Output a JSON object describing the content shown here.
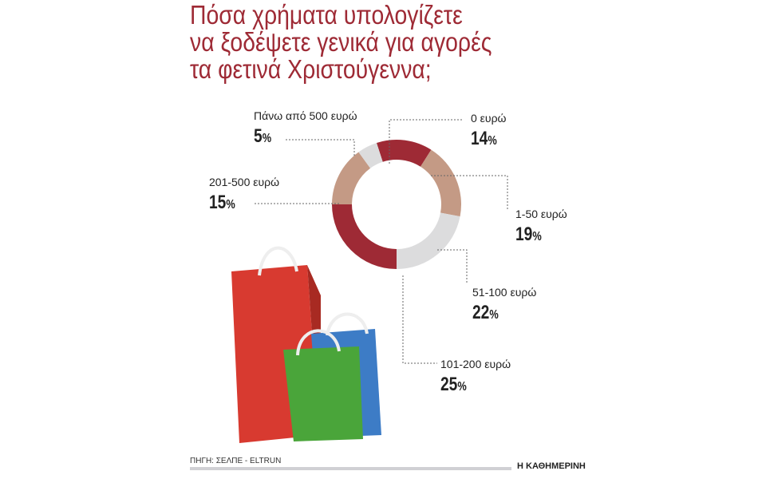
{
  "title": [
    "Πόσα χρήματα υπολογίζετε",
    "να ξοδέψετε γενικά για αγορές",
    "τα φετινά Χριστούγεννα;"
  ],
  "chart_data": {
    "type": "pie",
    "donut": true,
    "categories": [
      "0 ευρώ",
      "1-50 ευρώ",
      "51-100 ευρώ",
      "101-200 ευρώ",
      "201-500 ευρώ",
      "Πάνω από 500 ευρώ"
    ],
    "values": [
      14,
      19,
      22,
      25,
      15,
      5
    ],
    "labels": [
      "14%",
      "19%",
      "22%",
      "25%",
      "15%",
      "5%"
    ],
    "colors": [
      "#9e2a35",
      "#c49a85",
      "#dcdcdd",
      "#9e2a35",
      "#c49a85",
      "#dcdcdd"
    ]
  },
  "footer": {
    "source": "ΠΗΓΗ: ΣΕΛΠΕ - ELTRUN",
    "brand": "Η ΚΑΘΗΜΕΡΙΝΗ"
  }
}
